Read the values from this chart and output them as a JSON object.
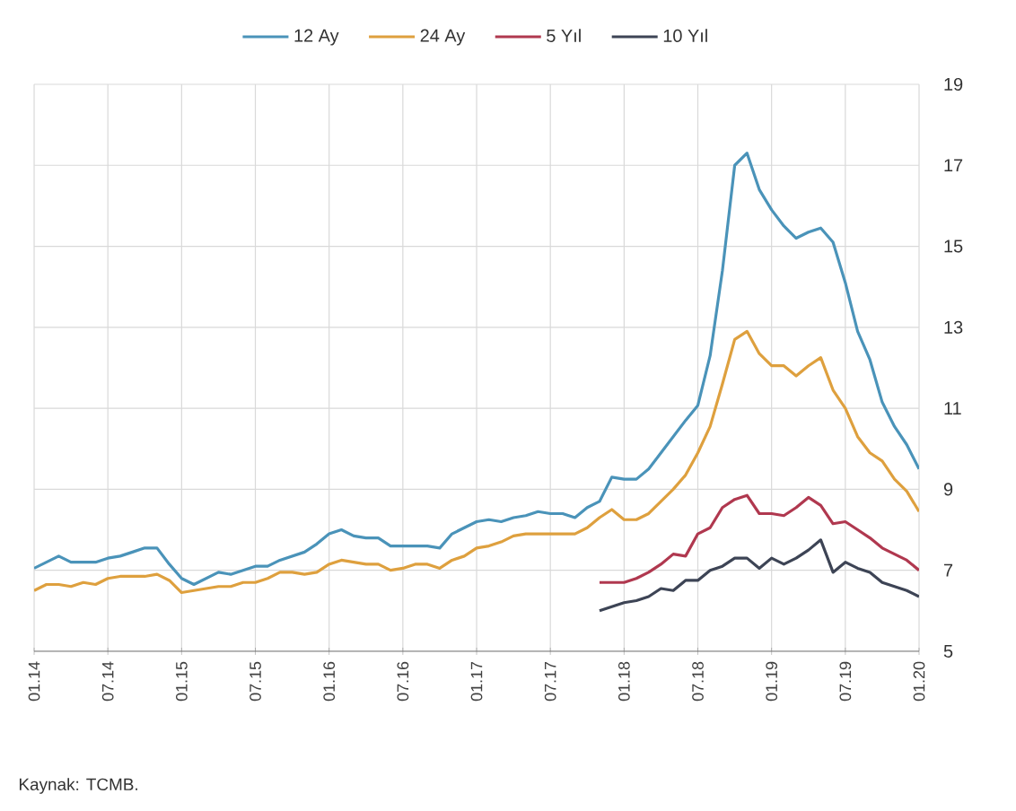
{
  "chart_data": {
    "type": "line",
    "annotations": [
      "Kaynak: TCMB."
    ],
    "x": [
      "2014-01",
      "2014-02",
      "2014-03",
      "2014-04",
      "2014-05",
      "2014-06",
      "2014-07",
      "2014-08",
      "2014-09",
      "2014-10",
      "2014-11",
      "2014-12",
      "2015-01",
      "2015-02",
      "2015-03",
      "2015-04",
      "2015-05",
      "2015-06",
      "2015-07",
      "2015-08",
      "2015-09",
      "2015-10",
      "2015-11",
      "2015-12",
      "2016-01",
      "2016-02",
      "2016-03",
      "2016-04",
      "2016-05",
      "2016-06",
      "2016-07",
      "2016-08",
      "2016-09",
      "2016-10",
      "2016-11",
      "2016-12",
      "2017-01",
      "2017-02",
      "2017-03",
      "2017-04",
      "2017-05",
      "2017-06",
      "2017-07",
      "2017-08",
      "2017-09",
      "2017-10",
      "2017-11",
      "2017-12",
      "2018-01",
      "2018-02",
      "2018-03",
      "2018-04",
      "2018-05",
      "2018-06",
      "2018-07",
      "2018-08",
      "2018-09",
      "2018-10",
      "2018-11",
      "2018-12",
      "2019-01",
      "2019-02",
      "2019-03",
      "2019-04",
      "2019-05",
      "2019-06",
      "2019-07",
      "2019-08",
      "2019-09",
      "2019-10",
      "2019-11",
      "2019-12",
      "2020-01"
    ],
    "series": [
      {
        "name": "12 Ay",
        "color": "#4a93b9",
        "values": [
          7.05,
          7.2,
          7.35,
          7.2,
          7.2,
          7.2,
          7.3,
          7.35,
          7.45,
          7.55,
          7.55,
          7.15,
          6.8,
          6.65,
          6.8,
          6.95,
          6.9,
          7.0,
          7.1,
          7.1,
          7.25,
          7.35,
          7.45,
          7.65,
          7.9,
          8.0,
          7.85,
          7.8,
          7.8,
          7.6,
          7.6,
          7.6,
          7.6,
          7.55,
          7.9,
          8.05,
          8.2,
          8.25,
          8.2,
          8.3,
          8.35,
          8.45,
          8.4,
          8.4,
          8.3,
          8.55,
          8.7,
          9.3,
          9.25,
          9.25,
          9.5,
          9.9,
          10.3,
          10.7,
          11.07,
          12.3,
          14.4,
          17.0,
          17.3,
          16.4,
          15.9,
          15.5,
          15.2,
          15.35,
          15.45,
          15.1,
          14.1,
          12.9,
          12.2,
          11.15,
          10.55,
          10.1,
          9.5
        ]
      },
      {
        "name": "24 Ay",
        "color": "#dea03e",
        "values": [
          6.5,
          6.65,
          6.65,
          6.6,
          6.7,
          6.65,
          6.8,
          6.85,
          6.85,
          6.85,
          6.9,
          6.75,
          6.45,
          6.5,
          6.55,
          6.6,
          6.6,
          6.7,
          6.7,
          6.8,
          6.95,
          6.95,
          6.9,
          6.95,
          7.15,
          7.25,
          7.2,
          7.15,
          7.15,
          7.0,
          7.05,
          7.15,
          7.15,
          7.05,
          7.25,
          7.35,
          7.55,
          7.6,
          7.7,
          7.85,
          7.9,
          7.9,
          7.9,
          7.9,
          7.9,
          8.05,
          8.3,
          8.5,
          8.25,
          8.25,
          8.4,
          8.7,
          9.0,
          9.35,
          9.9,
          10.55,
          11.6,
          12.7,
          12.9,
          12.35,
          12.05,
          12.05,
          11.8,
          12.05,
          12.25,
          11.45,
          11.0,
          10.3,
          9.9,
          9.7,
          9.25,
          8.95,
          8.45
        ]
      },
      {
        "name": "5 Yıl",
        "color": "#b0384f",
        "values": [
          null,
          null,
          null,
          null,
          null,
          null,
          null,
          null,
          null,
          null,
          null,
          null,
          null,
          null,
          null,
          null,
          null,
          null,
          null,
          null,
          null,
          null,
          null,
          null,
          null,
          null,
          null,
          null,
          null,
          null,
          null,
          null,
          null,
          null,
          null,
          null,
          null,
          null,
          null,
          null,
          null,
          null,
          null,
          null,
          null,
          null,
          6.7,
          6.7,
          6.7,
          6.8,
          6.95,
          7.15,
          7.4,
          7.35,
          7.9,
          8.05,
          8.55,
          8.75,
          8.85,
          8.4,
          8.4,
          8.35,
          8.55,
          8.8,
          8.6,
          8.15,
          8.2,
          8.0,
          7.8,
          7.55,
          7.4,
          7.25,
          7.0
        ]
      },
      {
        "name": "10 Yıl",
        "color": "#3d4455",
        "values": [
          null,
          null,
          null,
          null,
          null,
          null,
          null,
          null,
          null,
          null,
          null,
          null,
          null,
          null,
          null,
          null,
          null,
          null,
          null,
          null,
          null,
          null,
          null,
          null,
          null,
          null,
          null,
          null,
          null,
          null,
          null,
          null,
          null,
          null,
          null,
          null,
          null,
          null,
          null,
          null,
          null,
          null,
          null,
          null,
          null,
          null,
          6.0,
          6.1,
          6.2,
          6.25,
          6.35,
          6.55,
          6.5,
          6.75,
          6.75,
          7.0,
          7.1,
          7.3,
          7.3,
          7.05,
          7.3,
          7.15,
          7.3,
          7.5,
          7.75,
          6.95,
          7.2,
          7.05,
          6.95,
          6.7,
          6.6,
          6.5,
          6.35
        ]
      }
    ],
    "xlim": [
      "2014-01",
      "2020-01"
    ],
    "xticks": [
      {
        "value": "2014-01",
        "label": "01.14"
      },
      {
        "value": "2014-07",
        "label": "07.14"
      },
      {
        "value": "2015-01",
        "label": "01.15"
      },
      {
        "value": "2015-07",
        "label": "07.15"
      },
      {
        "value": "2016-01",
        "label": "01.16"
      },
      {
        "value": "2016-07",
        "label": "07.16"
      },
      {
        "value": "2017-01",
        "label": "01.17"
      },
      {
        "value": "2017-07",
        "label": "07.17"
      },
      {
        "value": "2018-01",
        "label": "01.18"
      },
      {
        "value": "2018-07",
        "label": "07.18"
      },
      {
        "value": "2019-01",
        "label": "01.19"
      },
      {
        "value": "2019-07",
        "label": "07.19"
      },
      {
        "value": "2020-01",
        "label": "01.20"
      }
    ],
    "ylim": [
      5,
      19
    ],
    "yticks": [
      5,
      7,
      9,
      11,
      13,
      15,
      17,
      19
    ],
    "grid": true,
    "legend": "top",
    "marker": "none",
    "line_style": "solid"
  }
}
